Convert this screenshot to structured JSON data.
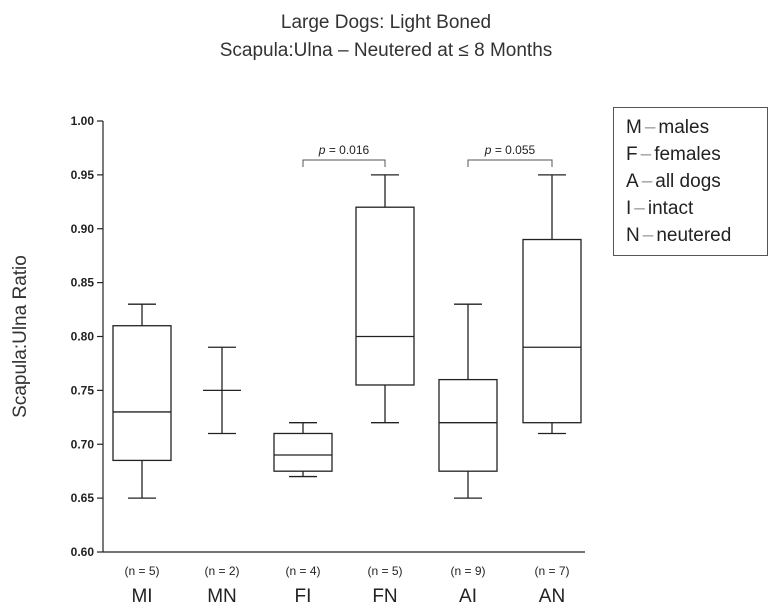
{
  "chart_data": {
    "type": "box",
    "title": "Large Dogs: Light Boned",
    "subtitle": "Scapula:Ulna – Neutered at ≤ 8 Months",
    "ylabel": "Scapula:Ulna Ratio",
    "xlabel": "",
    "ylim": [
      0.6,
      1.0
    ],
    "yticks": [
      "0.60",
      "0.65",
      "0.70",
      "0.75",
      "0.80",
      "0.85",
      "0.90",
      "0.95",
      "1.00"
    ],
    "categories": [
      "MI",
      "MN",
      "FI",
      "FN",
      "AI",
      "AN"
    ],
    "counts": [
      "(n = 5)",
      "(n = 2)",
      "(n = 4)",
      "(n = 5)",
      "(n = 9)",
      "(n = 7)"
    ],
    "boxes": [
      {
        "min": 0.65,
        "q1": 0.685,
        "median": 0.73,
        "q3": 0.81,
        "max": 0.83
      },
      {
        "min": 0.71,
        "median": 0.75,
        "max": 0.79
      },
      {
        "min": 0.67,
        "q1": 0.675,
        "median": 0.69,
        "q3": 0.71,
        "max": 0.72
      },
      {
        "min": 0.72,
        "q1": 0.755,
        "median": 0.8,
        "q3": 0.92,
        "max": 0.95
      },
      {
        "min": 0.65,
        "q1": 0.675,
        "median": 0.72,
        "q3": 0.76,
        "max": 0.83
      },
      {
        "min": 0.71,
        "q1": 0.72,
        "median": 0.79,
        "q3": 0.89,
        "max": 0.95
      }
    ],
    "annotations": [
      {
        "from": 2,
        "to": 3,
        "text": "p = 0.016"
      },
      {
        "from": 4,
        "to": 5,
        "text": "p = 0.055"
      }
    ],
    "legend": {
      "position": "top-right",
      "entries": [
        {
          "key": "M",
          "label": "males"
        },
        {
          "key": "F",
          "label": "females"
        },
        {
          "key": "A",
          "label": "all dogs"
        },
        {
          "key": "I",
          "label": "intact"
        },
        {
          "key": "N",
          "label": "neutered"
        }
      ]
    }
  }
}
